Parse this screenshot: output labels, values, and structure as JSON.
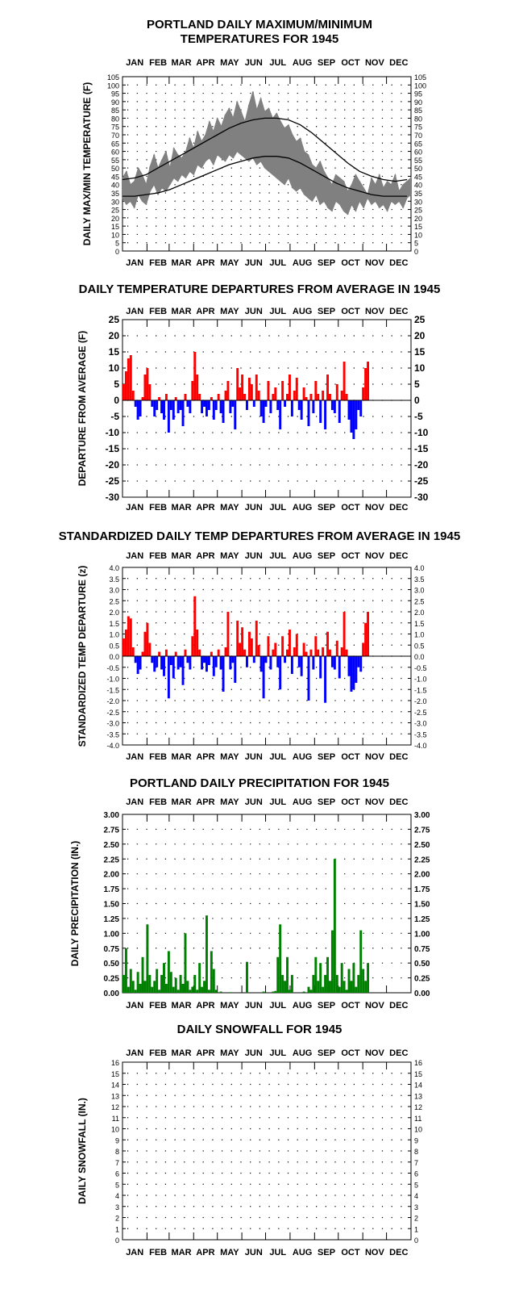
{
  "months": [
    "JAN",
    "FEB",
    "MAR",
    "APR",
    "MAY",
    "JUN",
    "JUL",
    "AUG",
    "SEP",
    "OCT",
    "NOV",
    "DEC"
  ],
  "colors": {
    "above": "#ff0000",
    "below": "#0000ff",
    "temp_band": "#808080",
    "precip": "#008000",
    "normal_line": "#000000"
  },
  "chart_data": [
    {
      "type": "line",
      "title": "PORTLAND DAILY MAXIMUM/MINIMUM\nTEMPERATURES FOR 1945",
      "ylabel": "DAILY MAX/MIN TEMPERATURE (F)",
      "ylim": [
        0,
        105
      ],
      "ytick_step": 5,
      "grid": true,
      "series": [
        {
          "name": "daily_max",
          "x_every_days": 5,
          "values": [
            44,
            48,
            40,
            42,
            50,
            46,
            40,
            51,
            58,
            50,
            55,
            60,
            50,
            62,
            58,
            56,
            60,
            68,
            62,
            72,
            66,
            70,
            78,
            72,
            80,
            75,
            82,
            86,
            80,
            90,
            84,
            78,
            88,
            96,
            85,
            92,
            84,
            86,
            80,
            83,
            78,
            74,
            76,
            70,
            66,
            68,
            60,
            58,
            52,
            50,
            54,
            48,
            44,
            40,
            46,
            44,
            42,
            36,
            40,
            46,
            42,
            38,
            34,
            44,
            40,
            46,
            38,
            42,
            40,
            46,
            36,
            40,
            42,
            44
          ]
        },
        {
          "name": "daily_min",
          "x_every_days": 5,
          "values": [
            32,
            28,
            30,
            26,
            34,
            30,
            28,
            36,
            40,
            34,
            38,
            36,
            40,
            44,
            42,
            46,
            44,
            48,
            46,
            52,
            50,
            54,
            56,
            52,
            58,
            56,
            54,
            58,
            56,
            60,
            58,
            56,
            54,
            56,
            52,
            54,
            50,
            48,
            46,
            44,
            42,
            40,
            44,
            38,
            36,
            38,
            34,
            32,
            30,
            34,
            28,
            30,
            26,
            24,
            30,
            28,
            24,
            22,
            28,
            24,
            30,
            26,
            32,
            28,
            30,
            26,
            28,
            24,
            30,
            28,
            30,
            26,
            32,
            34
          ]
        },
        {
          "name": "normal_max",
          "x_every_days": 15,
          "values": [
            43,
            44,
            46,
            50,
            54,
            58,
            62,
            66,
            70,
            74,
            77,
            79,
            80,
            80,
            79,
            76,
            71,
            65,
            59,
            53,
            48,
            45,
            43,
            42,
            43
          ]
        },
        {
          "name": "normal_min",
          "x_every_days": 15,
          "values": [
            33,
            33,
            34,
            35,
            37,
            40,
            43,
            46,
            49,
            52,
            54,
            56,
            57,
            57,
            56,
            53,
            49,
            45,
            41,
            38,
            36,
            34,
            33,
            33,
            33
          ]
        }
      ]
    },
    {
      "type": "bar",
      "title": "DAILY TEMPERATURE DEPARTURES FROM AVERAGE IN 1945",
      "ylabel": "DEPARTURE FROM AVERAGE (F)",
      "ylim": [
        -30,
        25
      ],
      "ytick_step": 5,
      "grid": true,
      "x_every_days": 3,
      "values": [
        5,
        9,
        13,
        14,
        3,
        -2,
        -6,
        -5,
        1,
        8,
        10,
        5,
        -2,
        -5,
        -3,
        1,
        -4,
        -6,
        2,
        -10,
        -3,
        -6,
        1,
        -4,
        -3,
        -8,
        2,
        -2,
        -4,
        6,
        15,
        8,
        2,
        -4,
        -2,
        -5,
        -3,
        1,
        -6,
        -3,
        2,
        -4,
        -7,
        3,
        6,
        -4,
        -2,
        -9,
        10,
        4,
        8,
        2,
        -3,
        7,
        5,
        -2,
        8,
        3,
        -5,
        -7,
        -2,
        6,
        -4,
        2,
        4,
        -3,
        -9,
        6,
        -2,
        2,
        8,
        -5,
        3,
        7,
        -3,
        -6,
        4,
        1,
        -8,
        2,
        -4,
        6,
        2,
        -7,
        3,
        -9,
        8,
        2,
        -3,
        -4,
        5,
        -7,
        3,
        12,
        2,
        -6,
        -10,
        -12,
        -9,
        -3,
        -5,
        4,
        10,
        12
      ]
    },
    {
      "type": "bar",
      "title": "STANDARDIZED DAILY TEMP DEPARTURES FROM AVERAGE IN 1945",
      "ylabel": "STANDARDIZED TEMP DEPARTURE (z)",
      "ylim": [
        -4.0,
        4.0
      ],
      "ytick_step": 0.5,
      "grid": true,
      "x_every_days": 3,
      "values": [
        0.8,
        1.2,
        1.8,
        1.7,
        0.4,
        -0.3,
        -0.8,
        -0.6,
        0.2,
        1.1,
        1.5,
        0.6,
        -0.3,
        -0.7,
        -0.5,
        0.2,
        -0.6,
        -0.9,
        0.3,
        -1.9,
        -0.4,
        -1.0,
        0.2,
        -0.6,
        -0.5,
        -1.3,
        0.3,
        -0.3,
        -0.6,
        0.9,
        2.7,
        1.2,
        0.3,
        -0.6,
        -0.3,
        -0.7,
        -0.4,
        0.2,
        -0.9,
        -0.5,
        0.3,
        -0.6,
        -1.6,
        0.4,
        2.0,
        -0.6,
        -0.3,
        -1.2,
        1.6,
        0.6,
        1.3,
        0.3,
        -0.5,
        1.1,
        0.8,
        -0.3,
        1.6,
        0.5,
        -0.7,
        -1.9,
        -0.3,
        0.9,
        -0.6,
        0.3,
        0.6,
        -0.5,
        -1.5,
        0.9,
        -0.3,
        0.3,
        1.2,
        -0.8,
        0.4,
        1.0,
        -0.5,
        -0.9,
        0.6,
        0.2,
        -2.0,
        0.3,
        -0.6,
        0.9,
        0.3,
        -1.0,
        0.4,
        -2.1,
        1.1,
        0.3,
        -0.5,
        -0.6,
        0.7,
        -1.0,
        0.4,
        2.0,
        0.3,
        -0.9,
        -1.6,
        -1.5,
        -1.2,
        -0.5,
        -0.7,
        0.6,
        1.5,
        2.0
      ]
    },
    {
      "type": "bar",
      "title": "PORTLAND DAILY PRECIPITATION FOR 1945",
      "ylabel": "DAILY PRECIPITATION (IN.)",
      "ylim": [
        0,
        3.0
      ],
      "ytick_step": 0.25,
      "grid": true,
      "x_every_days": 3,
      "values": [
        0.3,
        0.75,
        0.1,
        0.4,
        0.2,
        0.05,
        0.35,
        0.15,
        0.6,
        0.2,
        1.15,
        0.3,
        0.1,
        0.2,
        0.4,
        0.05,
        0.3,
        0.5,
        0.15,
        0.7,
        0.35,
        0.1,
        0.25,
        0.05,
        0.3,
        0.15,
        1.0,
        0.2,
        0.05,
        0.1,
        0.3,
        0.05,
        0.5,
        0.1,
        0.2,
        1.3,
        0.05,
        0.7,
        0.4,
        0.05,
        0,
        0.02,
        0,
        0,
        0,
        0.01,
        0,
        0,
        0,
        0,
        0,
        0,
        0.52,
        0,
        0,
        0,
        0,
        0,
        0,
        0.02,
        0,
        0,
        0,
        0.02,
        0.03,
        0.6,
        1.15,
        0.3,
        0.2,
        0.6,
        0.05,
        0.3,
        0,
        0,
        0,
        0,
        0.02,
        0,
        0.1,
        0.05,
        0.3,
        0.6,
        0.2,
        0.5,
        0.1,
        0.3,
        0.6,
        0.2,
        1.05,
        2.25,
        0.3,
        0.1,
        0.5,
        0.2,
        0.05,
        0.4,
        0.2,
        0.5,
        0.1,
        0.3,
        1.05,
        0.4,
        0.2,
        0.5
      ]
    },
    {
      "type": "bar",
      "title": "DAILY SNOWFALL FOR 1945",
      "ylabel": "DAILY SNOWFALL (IN.)",
      "ylim": [
        0,
        16
      ],
      "ytick_step": 1,
      "grid": true,
      "x_every_days": 3,
      "values": []
    }
  ]
}
